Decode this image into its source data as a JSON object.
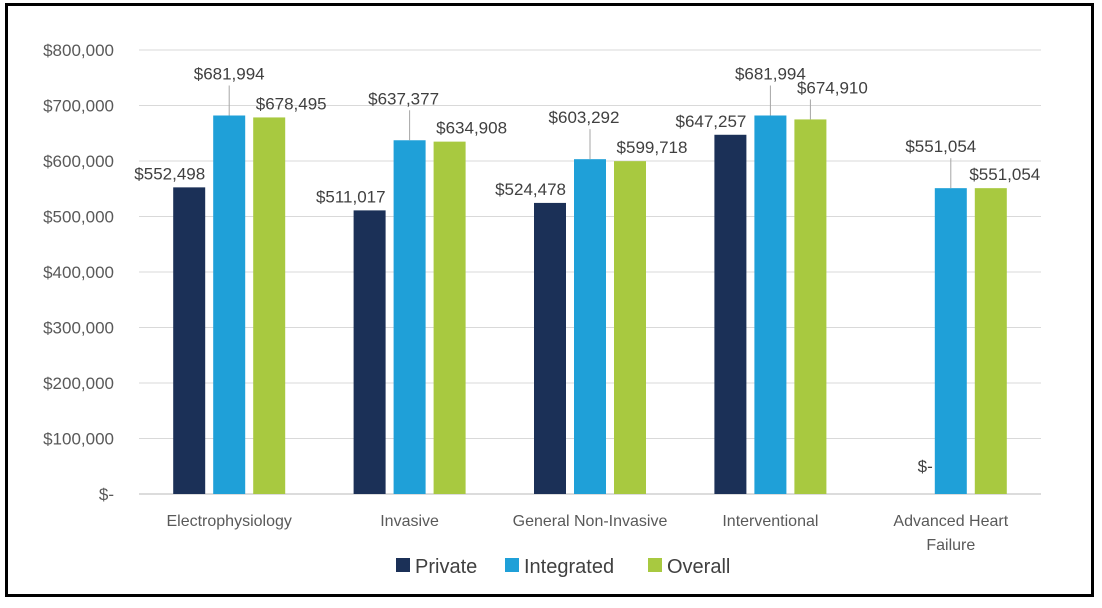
{
  "chart_data": {
    "type": "bar",
    "title": "",
    "xlabel": "",
    "ylabel": "",
    "ylim": [
      0,
      800000
    ],
    "yticks": [
      0,
      100000,
      200000,
      300000,
      400000,
      500000,
      600000,
      700000,
      800000
    ],
    "ytick_labels": [
      "$-",
      "$100,000",
      "$200,000",
      "$300,000",
      "$400,000",
      "$500,000",
      "$600,000",
      "$700,000",
      "$800,000"
    ],
    "grid": true,
    "legend_position": "bottom",
    "categories": [
      [
        "Electrophysiology"
      ],
      [
        "Invasive"
      ],
      [
        "General Non-Invasive"
      ],
      [
        "Interventional"
      ],
      [
        "Advanced Heart",
        "Failure"
      ]
    ],
    "series": [
      {
        "name": "Private",
        "color": "#1b3057",
        "values": [
          552498,
          511017,
          524478,
          647257,
          0
        ],
        "labels": [
          "$552,498",
          "$511,017",
          "$524,478",
          "$647,257",
          "$-"
        ]
      },
      {
        "name": "Integrated",
        "color": "#1fa0d8",
        "values": [
          681994,
          637377,
          603292,
          681994,
          551054
        ],
        "labels": [
          "$681,994",
          "$637,377",
          "$603,292",
          "$681,994",
          "$551,054"
        ]
      },
      {
        "name": "Overall",
        "color": "#a8c940",
        "values": [
          678495,
          634908,
          599718,
          674910,
          551054
        ],
        "labels": [
          "$678,495",
          "$634,908",
          "$599,718",
          "$674,910",
          "$551,054"
        ]
      }
    ]
  }
}
